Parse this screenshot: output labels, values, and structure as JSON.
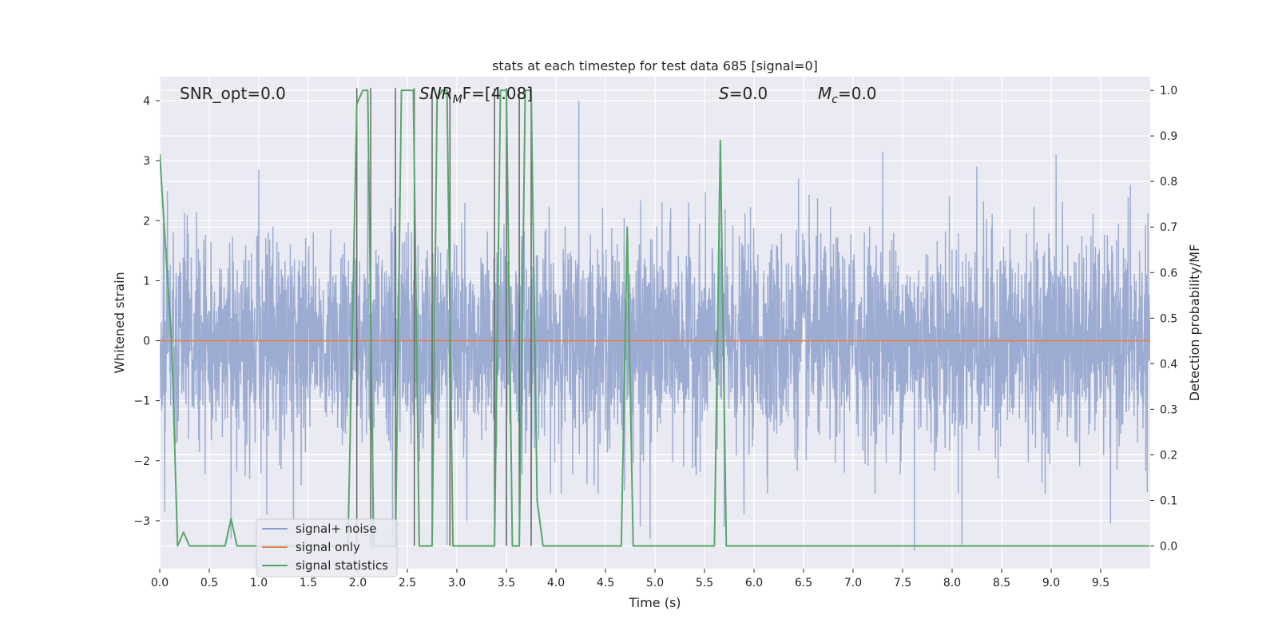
{
  "chart_data": {
    "type": "line",
    "title": "stats at each timestep for test data 685 [signal=0]",
    "xlabel": "Time (s)",
    "ylabel_left": "Whitened strain",
    "ylabel_right": "Detection probability/MF",
    "xlim": [
      0.0,
      10.0
    ],
    "ylim_left": [
      -3.8,
      4.4
    ],
    "ylim_right": [
      -0.05,
      1.03
    ],
    "grid": true,
    "legend_position": "lower-left",
    "x_ticks": [
      "0.0",
      "0.5",
      "1.0",
      "1.5",
      "2.0",
      "2.5",
      "3.0",
      "3.5",
      "4.0",
      "4.5",
      "5.0",
      "5.5",
      "6.0",
      "6.5",
      "7.0",
      "7.5",
      "8.0",
      "8.5",
      "9.0",
      "9.5"
    ],
    "y_ticks_left": [
      "−3",
      "−2",
      "−1",
      "0",
      "1",
      "2",
      "3",
      "4"
    ],
    "y_ticks_right": [
      "0.0",
      "0.1",
      "0.2",
      "0.3",
      "0.4",
      "0.5",
      "0.6",
      "0.7",
      "0.8",
      "0.9",
      "1.0"
    ],
    "annotations": {
      "snr_opt": "SNR_opt=0.0",
      "snr_mf_main": "SNR",
      "snr_mf_sub": "M",
      "snr_mf_rest": "F=[4.08]",
      "s_main": "S",
      "s_rest": "=0.0",
      "mc_main": "M",
      "mc_sub": "c",
      "mc_rest": "=0.0"
    },
    "vertical_markers_x": [
      1.99,
      2.13,
      2.38,
      2.57,
      2.75,
      2.93,
      3.38,
      3.5,
      3.63,
      3.75
    ],
    "series": [
      {
        "name": "signal+ noise",
        "color": "#8da0cb",
        "noise_sigma": 0.85,
        "spikes": [
          [
            0.05,
            -2.85
          ],
          [
            0.72,
            -3.3
          ],
          [
            1.0,
            2.85
          ],
          [
            1.08,
            -2.9
          ],
          [
            1.35,
            -3.0
          ],
          [
            2.1,
            3.0
          ],
          [
            2.15,
            -3.5
          ],
          [
            2.35,
            -3.3
          ],
          [
            2.9,
            -3.4
          ],
          [
            3.1,
            -3.0
          ],
          [
            3.5,
            -3.4
          ],
          [
            3.75,
            -3.2
          ],
          [
            4.23,
            4.0
          ],
          [
            4.85,
            -3.1
          ],
          [
            4.95,
            -3.3
          ],
          [
            5.65,
            2.5
          ],
          [
            5.7,
            -3.1
          ],
          [
            5.9,
            -2.9
          ],
          [
            6.45,
            2.7
          ],
          [
            7.3,
            3.15
          ],
          [
            7.62,
            -3.5
          ],
          [
            8.1,
            -3.4
          ],
          [
            8.25,
            2.9
          ],
          [
            9.05,
            3.1
          ],
          [
            9.6,
            -3.05
          ],
          [
            9.8,
            2.6
          ]
        ]
      },
      {
        "name": "signal only",
        "color": "#dd8452",
        "value": 0.0
      },
      {
        "name": "signal statistics",
        "color": "#55a868",
        "x": [
          0.0,
          0.06,
          0.12,
          0.18,
          0.24,
          0.3,
          0.6,
          0.66,
          0.72,
          0.78,
          0.84,
          1.9,
          1.99,
          2.05,
          2.1,
          2.16,
          2.22,
          2.3,
          2.38,
          2.44,
          2.5,
          2.56,
          2.62,
          2.7,
          2.75,
          2.8,
          2.85,
          2.9,
          2.96,
          3.05,
          3.3,
          3.38,
          3.44,
          3.5,
          3.56,
          3.63,
          3.69,
          3.75,
          3.81,
          3.87,
          4.6,
          4.66,
          4.72,
          4.78,
          5.5,
          5.6,
          5.66,
          5.72,
          5.78,
          9.99
        ],
        "y": [
          0.86,
          0.65,
          0.45,
          0.0,
          0.03,
          0.0,
          0.0,
          0.0,
          0.06,
          0.0,
          0.0,
          0.0,
          0.97,
          1.0,
          1.0,
          0.0,
          0.0,
          0.0,
          0.0,
          1.0,
          1.0,
          1.0,
          0.0,
          0.0,
          0.0,
          0.98,
          1.0,
          1.0,
          0.0,
          0.0,
          0.0,
          0.0,
          1.0,
          1.0,
          0.0,
          0.0,
          1.0,
          1.0,
          0.1,
          0.0,
          0.0,
          0.0,
          0.7,
          0.0,
          0.0,
          0.0,
          0.89,
          0.0,
          0.0,
          0.0
        ]
      }
    ]
  }
}
